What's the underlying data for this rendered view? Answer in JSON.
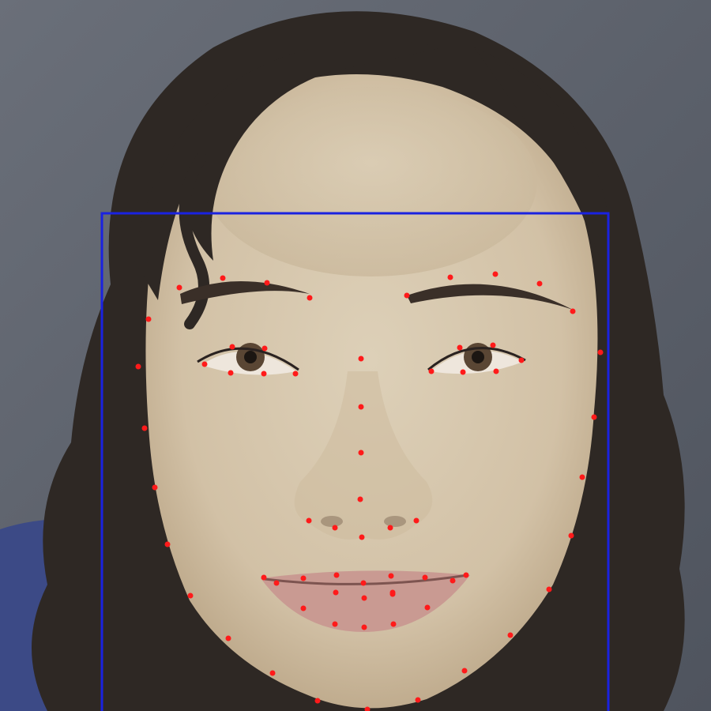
{
  "image": {
    "subject": "face-photo",
    "overlay_colors": {
      "bounding_box": "#1a22e0",
      "landmark": "#ff1a1a"
    },
    "palette": {
      "background": "#60656f",
      "background_light": "#7a7f88",
      "skin": "#d9c8ae",
      "skin_shadow": "#c4b094",
      "hair": "#2e2824",
      "chair": "#3c4a86",
      "lips": "#c99a92",
      "iris": "#5a4634"
    }
  },
  "annotation": {
    "box": {
      "label": "face-bounding-box"
    },
    "landmark_count": 68
  }
}
